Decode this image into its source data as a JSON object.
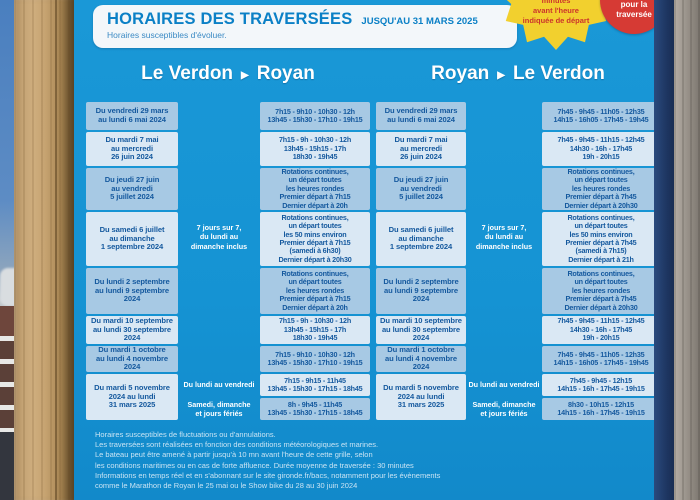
{
  "header": {
    "title": "HORAIRES DES TRAVERSÉES",
    "validity": "JUSQU'AU 31 MARS 2025",
    "subtitle": "Horaires susceptibles d'évoluer."
  },
  "badges": {
    "yellow_note": "minutes\navant l'heure\nindiquée de départ",
    "red_note": "pour la\ntraversée"
  },
  "icons": {
    "arrow_right": "▶"
  },
  "colors": {
    "sign_blue": "#1593d3",
    "cell_light": "#dae8f4",
    "cell_medium": "#a7c9e4",
    "cell_text": "#15599e",
    "header_text": "#0b80c6",
    "badge_yellow": "#f2d02e",
    "badge_red": "#d63a34",
    "edge_navy": "#1d3560",
    "wood_left": "#c4a374",
    "wood_right": "#9c958d"
  },
  "sections": [
    {
      "from": "Le Verdon",
      "to": "Royan",
      "dates": [
        "Du vendredi 29 mars\nau lundi 6 mai 2024",
        "Du mardi 7 mai\nau mercredi\n26 juin 2024",
        "Du jeudi 27 juin\nau vendredi\n5 juillet 2024",
        "Du samedi 6 juillet\nau dimanche\n1 septembre 2024",
        "Du lundi 2 septembre\nau lundi 9 septembre\n2024",
        "Du mardi 10 septembre\nau lundi 30 septembre\n2024",
        "Du mardi 1 octobre\nau lundi 4 novembre\n2024",
        "Du mardi 5 novembre\n2024 au lundi\n31 mars 2025"
      ],
      "weeknote": "7 jours sur 7,\ndu lundi au\ndimanche inclus",
      "daytypes": [
        "Du lundi au vendredi",
        "Samedi, dimanche\net jours fériés"
      ],
      "times": [
        "7h15 - 9h10 - 10h30 - 12h\n13h45 - 15h30 - 17h10 - 19h15",
        "7h15 - 9h - 10h30 - 12h\n13h45 - 15h15 - 17h\n18h30 - 19h45",
        "Rotations continues,\nun départ toutes\nles heures rondes\nPremier départ à 7h15\nDernier départ à 20h",
        "Rotations continues,\nun départ toutes\nles 50 mins environ\nPremier départ à 7h15\n(samedi à 6h30)\nDernier départ à 20h30",
        "Rotations continues,\nun départ toutes\nles heures rondes\nPremier départ à 7h15\nDernier départ à 20h",
        "7h15 - 9h - 10h30 - 12h\n13h45 - 15h15 - 17h\n18h30 - 19h45",
        "7h15 - 9h10 - 10h30 - 12h\n13h45 - 15h30 - 17h10 - 19h15",
        "7h15 - 9h15 - 11h45\n13h45 - 15h30 - 17h15 - 18h45",
        "8h - 9h45 - 11h45\n13h45 - 15h30 - 17h15 - 18h45"
      ]
    },
    {
      "from": "Royan",
      "to": "Le Verdon",
      "dates": [
        "Du vendredi 29 mars\nau lundi 6 mai 2024",
        "Du mardi 7 mai\nau mercredi\n26 juin 2024",
        "Du jeudi 27 juin\nau vendredi\n5 juillet 2024",
        "Du samedi 6 juillet\nau dimanche\n1 septembre 2024",
        "Du lundi 2 septembre\nau lundi 9 septembre\n2024",
        "Du mardi 10 septembre\nau lundi 30 septembre\n2024",
        "Du mardi 1 octobre\nau lundi 4 novembre\n2024",
        "Du mardi 5 novembre\n2024 au lundi\n31 mars 2025"
      ],
      "weeknote": "7 jours sur 7,\ndu lundi au\ndimanche inclus",
      "daytypes": [
        "Du lundi au vendredi",
        "Samedi, dimanche\net jours fériés"
      ],
      "times": [
        "7h45 - 9h45 - 11h05 - 12h35\n14h15 - 16h05 - 17h45 - 19h45",
        "7h45 - 9h45 - 11h15 - 12h45\n14h30 - 16h - 17h45\n19h - 20h15",
        "Rotations continues,\nun départ toutes\nles heures rondes\nPremier départ à 7h45\nDernier départ à 20h30",
        "Rotations continues,\nun départ toutes\nles 50 mins environ\nPremier départ à 7h45\n(samedi à 7h15)\nDernier départ à 21h",
        "Rotations continues,\nun départ toutes\nles heures rondes\nPremier départ à 7h45\nDernier départ à 20h30",
        "7h45 - 9h45 - 11h15 - 12h45\n14h30 - 16h - 17h45\n19h - 20h15",
        "7h45 - 9h45 - 11h05 - 12h35\n14h15 - 16h05 - 17h45 - 19h45",
        "7h45 - 9h45 - 12h15\n14h15 - 16h - 17h45 - 19h15",
        "8h30 - 10h15 - 12h15\n14h15 - 16h - 17h45 - 19h15"
      ]
    }
  ],
  "footer": {
    "note_lines": [
      "Horaires susceptibles de fluctuations ou d'annulations.",
      "Les traversées sont réalisées en fonction des conditions météorologiques et marines.",
      "Le bateau peut être amené à partir jusqu'à 10 mn avant l'heure de cette grille, selon",
      "les conditions maritimes ou en cas de forte affluence. Durée moyenne de traversée : 30 minutes",
      "Informations en temps réel et en s'abonnant sur le site gironde.fr/bacs, notamment pour les évènements",
      "comme le Marathon de Royan le 25 mai ou le Show bike du 28 au 30 juin 2024"
    ]
  }
}
